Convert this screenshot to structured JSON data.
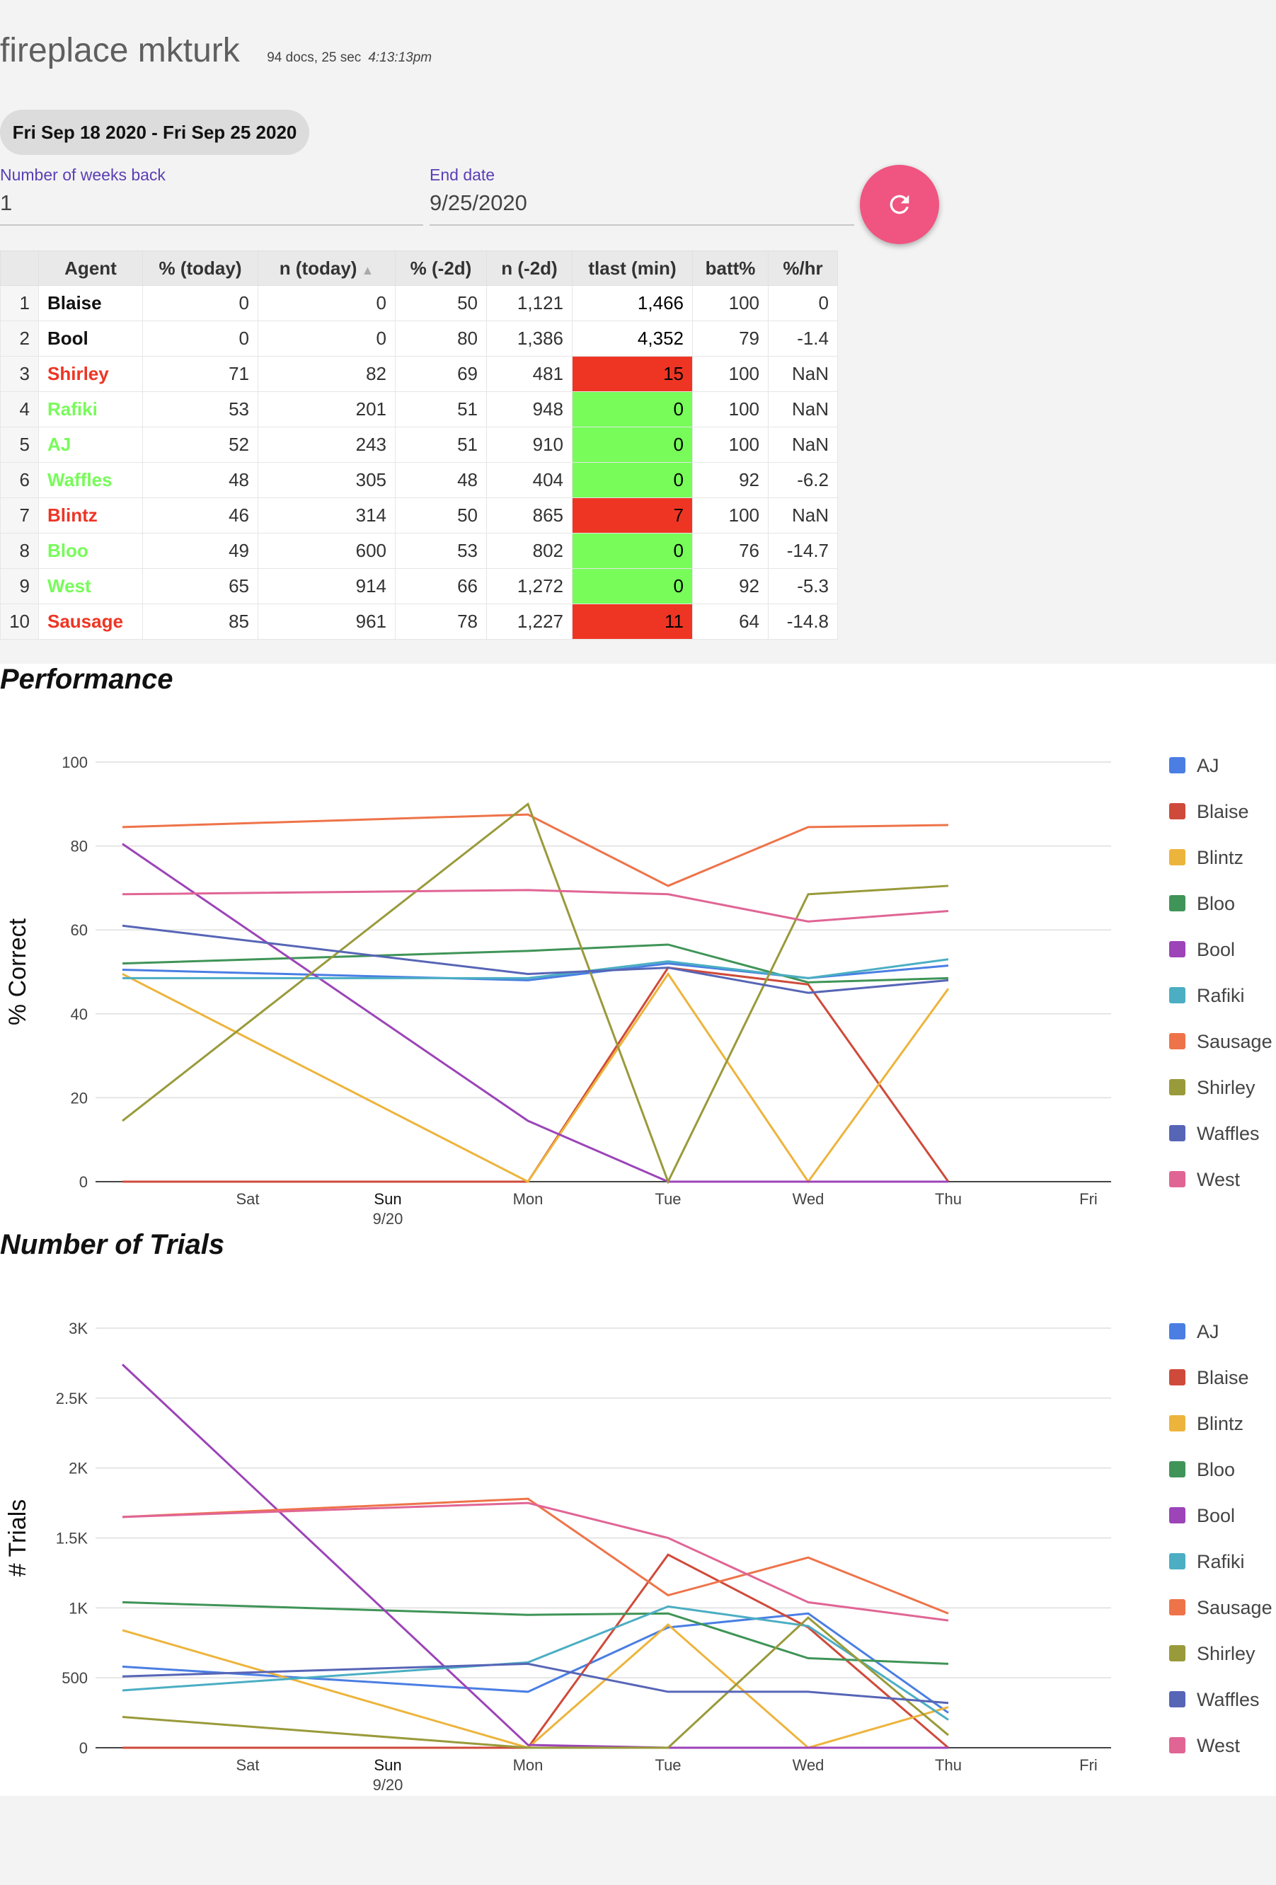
{
  "header": {
    "title": "fireplace mkturk",
    "docs": "94 docs, 25 sec",
    "time": "4:13:13pm"
  },
  "date_range_chip": "Fri Sep 18 2020 - Fri Sep 25 2020",
  "fields": {
    "weeks_back": {
      "label": "Number of weeks back",
      "value": "1"
    },
    "end_date": {
      "label": "End date",
      "value": "9/25/2020"
    }
  },
  "refresh_icon": "refresh-icon",
  "colors": {
    "red": "#ee3524",
    "green": "#77fc59",
    "fab": "#f05480"
  },
  "table": {
    "headers": [
      "Agent",
      "% (today)",
      "n (today)",
      "% (-2d)",
      "n (-2d)",
      "tlast (min)",
      "batt%",
      "%/hr"
    ],
    "sort_indicator": "▲",
    "rows": [
      {
        "idx": "1",
        "agent": "Blaise",
        "pt": "0",
        "nt": "0",
        "p2": "50",
        "n2": "1,121",
        "tlast": "1,466",
        "batt": "100",
        "rate": "0",
        "status": "none"
      },
      {
        "idx": "2",
        "agent": "Bool",
        "pt": "0",
        "nt": "0",
        "p2": "80",
        "n2": "1,386",
        "tlast": "4,352",
        "batt": "79",
        "rate": "-1.4",
        "status": "none"
      },
      {
        "idx": "3",
        "agent": "Shirley",
        "pt": "71",
        "nt": "82",
        "p2": "69",
        "n2": "481",
        "tlast": "15",
        "batt": "100",
        "rate": "NaN",
        "status": "red"
      },
      {
        "idx": "4",
        "agent": "Rafiki",
        "pt": "53",
        "nt": "201",
        "p2": "51",
        "n2": "948",
        "tlast": "0",
        "batt": "100",
        "rate": "NaN",
        "status": "green"
      },
      {
        "idx": "5",
        "agent": "AJ",
        "pt": "52",
        "nt": "243",
        "p2": "51",
        "n2": "910",
        "tlast": "0",
        "batt": "100",
        "rate": "NaN",
        "status": "green"
      },
      {
        "idx": "6",
        "agent": "Waffles",
        "pt": "48",
        "nt": "305",
        "p2": "48",
        "n2": "404",
        "tlast": "0",
        "batt": "92",
        "rate": "-6.2",
        "status": "green"
      },
      {
        "idx": "7",
        "agent": "Blintz",
        "pt": "46",
        "nt": "314",
        "p2": "50",
        "n2": "865",
        "tlast": "7",
        "batt": "100",
        "rate": "NaN",
        "status": "red"
      },
      {
        "idx": "8",
        "agent": "Bloo",
        "pt": "49",
        "nt": "600",
        "p2": "53",
        "n2": "802",
        "tlast": "0",
        "batt": "76",
        "rate": "-14.7",
        "status": "green"
      },
      {
        "idx": "9",
        "agent": "West",
        "pt": "65",
        "nt": "914",
        "p2": "66",
        "n2": "1,272",
        "tlast": "0",
        "batt": "92",
        "rate": "-5.3",
        "status": "green"
      },
      {
        "idx": "10",
        "agent": "Sausage",
        "pt": "85",
        "nt": "961",
        "p2": "78",
        "n2": "1,227",
        "tlast": "11",
        "batt": "64",
        "rate": "-14.8",
        "status": "red"
      }
    ]
  },
  "sections": {
    "performance": "Performance",
    "trials": "Number of Trials"
  },
  "chart_data": [
    {
      "type": "line",
      "ylabel": "% Correct",
      "ylim": [
        0,
        100
      ],
      "yticks": [
        "0",
        "20",
        "40",
        "60",
        "80",
        "100"
      ],
      "ytick_values": [
        0,
        20,
        40,
        60,
        80,
        100
      ],
      "x_tick_labels": [
        "Sat",
        "Sun",
        "Mon",
        "Tue",
        "Wed",
        "Thu",
        "Fri"
      ],
      "x_sub_label": "9/20",
      "x": [
        "Fri",
        "Mon",
        "Tue",
        "Wed",
        "Thu"
      ],
      "grid": true,
      "legend": "right",
      "series": [
        {
          "name": "AJ",
          "color": "#4a7ee3",
          "values": [
            50.5,
            48,
            52,
            48.5,
            51.5
          ]
        },
        {
          "name": "Blaise",
          "color": "#cf4a3a",
          "values": [
            0,
            0,
            51,
            47,
            0
          ]
        },
        {
          "name": "Blintz",
          "color": "#edb43c",
          "values": [
            49.5,
            0,
            49.5,
            0,
            46
          ]
        },
        {
          "name": "Bloo",
          "color": "#3f9457",
          "values": [
            52,
            55,
            56.5,
            47.5,
            48.5
          ]
        },
        {
          "name": "Bool",
          "color": "#9c44b8",
          "values": [
            80.5,
            14.5,
            0,
            0,
            0
          ]
        },
        {
          "name": "Rafiki",
          "color": "#4baec3",
          "values": [
            48.5,
            48.5,
            52.5,
            48.5,
            53
          ]
        },
        {
          "name": "Sausage",
          "color": "#ee7349",
          "values": [
            84.5,
            87.5,
            70.5,
            84.5,
            85
          ]
        },
        {
          "name": "Shirley",
          "color": "#999a3a",
          "values": [
            14.5,
            90,
            0,
            68.5,
            70.5
          ]
        },
        {
          "name": "Waffles",
          "color": "#5765b6",
          "values": [
            61,
            49.5,
            51,
            45,
            48
          ]
        },
        {
          "name": "West",
          "color": "#e06595",
          "values": [
            68.5,
            69.5,
            68.5,
            62,
            64.5
          ]
        }
      ]
    },
    {
      "type": "line",
      "ylabel": "# Trials",
      "ylim": [
        0,
        3000
      ],
      "yticks": [
        "0",
        "500",
        "1K",
        "1.5K",
        "2K",
        "2.5K",
        "3K"
      ],
      "ytick_values": [
        0,
        500,
        1000,
        1500,
        2000,
        2500,
        3000
      ],
      "x_tick_labels": [
        "Sat",
        "Sun",
        "Mon",
        "Tue",
        "Wed",
        "Thu",
        "Fri"
      ],
      "x_sub_label": "9/20",
      "x": [
        "Fri",
        "Mon",
        "Tue",
        "Wed",
        "Thu"
      ],
      "grid": true,
      "legend": "right",
      "series": [
        {
          "name": "AJ",
          "color": "#4a7ee3",
          "values": [
            580,
            400,
            860,
            960,
            250
          ]
        },
        {
          "name": "Blaise",
          "color": "#cf4a3a",
          "values": [
            0,
            0,
            1380,
            860,
            0
          ]
        },
        {
          "name": "Blintz",
          "color": "#edb43c",
          "values": [
            840,
            0,
            880,
            0,
            290
          ]
        },
        {
          "name": "Bloo",
          "color": "#3f9457",
          "values": [
            1040,
            950,
            960,
            640,
            600
          ]
        },
        {
          "name": "Bool",
          "color": "#9c44b8",
          "values": [
            2740,
            20,
            0,
            0,
            0
          ]
        },
        {
          "name": "Rafiki",
          "color": "#4baec3",
          "values": [
            410,
            610,
            1010,
            870,
            200
          ]
        },
        {
          "name": "Sausage",
          "color": "#ee7349",
          "values": [
            1650,
            1780,
            1090,
            1360,
            960
          ]
        },
        {
          "name": "Shirley",
          "color": "#999a3a",
          "values": [
            220,
            0,
            0,
            930,
            90
          ]
        },
        {
          "name": "Waffles",
          "color": "#5765b6",
          "values": [
            510,
            600,
            400,
            400,
            320
          ]
        },
        {
          "name": "West",
          "color": "#e06595",
          "values": [
            1650,
            1750,
            1500,
            1040,
            910
          ]
        }
      ]
    }
  ]
}
